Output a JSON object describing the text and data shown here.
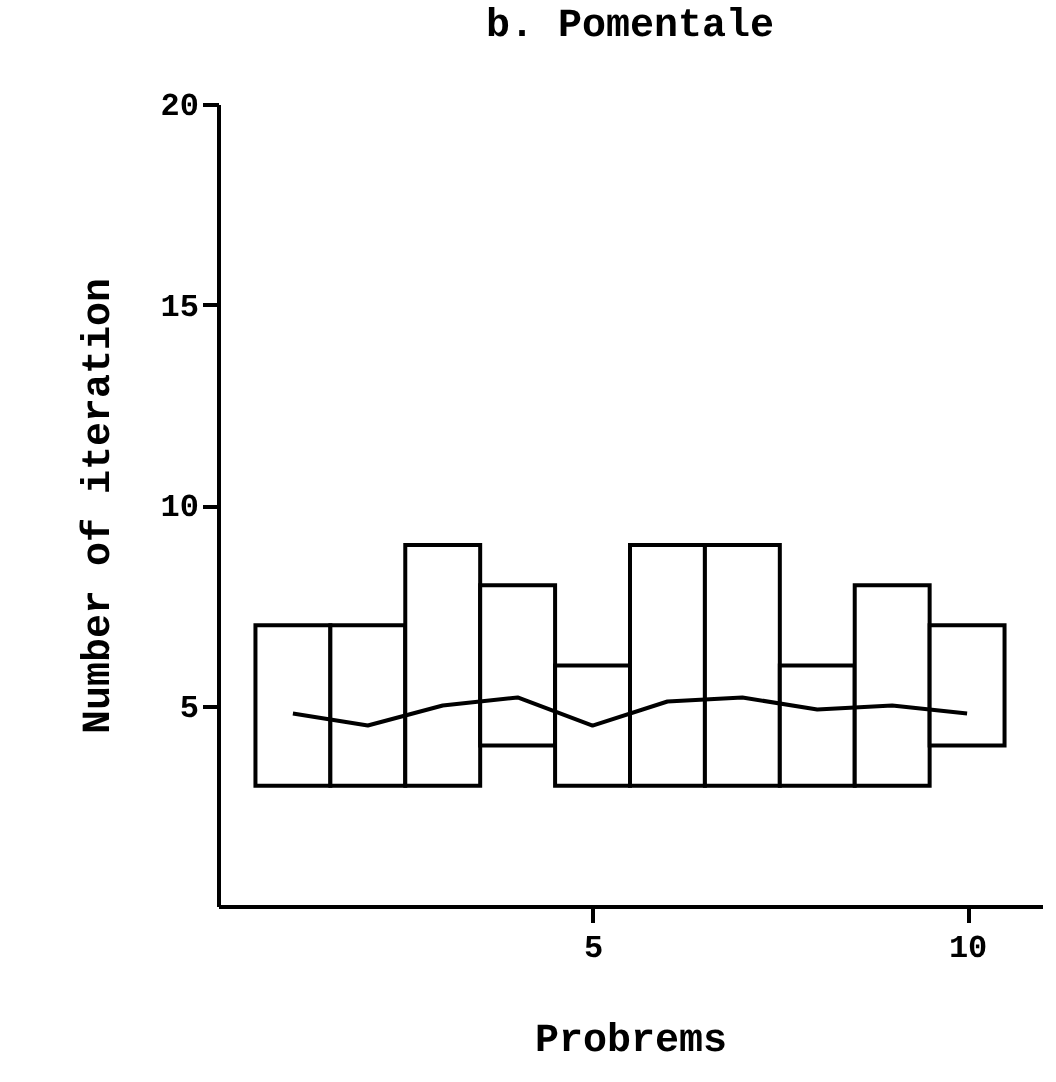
{
  "chart_data": {
    "type": "bar",
    "title": "b.  Pomentale",
    "xlabel": "Probrems",
    "ylabel": "Number of iteration",
    "x": [
      1,
      2,
      3,
      4,
      5,
      6,
      7,
      8,
      9,
      10
    ],
    "series": [
      {
        "color": "#000000",
        "base": [
          3,
          3,
          3,
          4,
          3,
          3,
          3,
          3,
          3,
          4
        ],
        "values": [
          4,
          4,
          6,
          4,
          3,
          6,
          6,
          3,
          5,
          3
        ]
      },
      {
        "type": "line",
        "color": "#000000",
        "values": [
          4.8,
          4.5,
          5.0,
          5.2,
          4.5,
          5.1,
          5.2,
          4.9,
          5.0,
          4.8
        ]
      }
    ],
    "xlim": [
      0,
      11
    ],
    "xticks": [
      5,
      10
    ],
    "ylim": [
      0,
      20
    ],
    "yticks": [
      5,
      10,
      15,
      20
    ],
    "grid": false,
    "marker": "none",
    "line_style": "solid"
  }
}
